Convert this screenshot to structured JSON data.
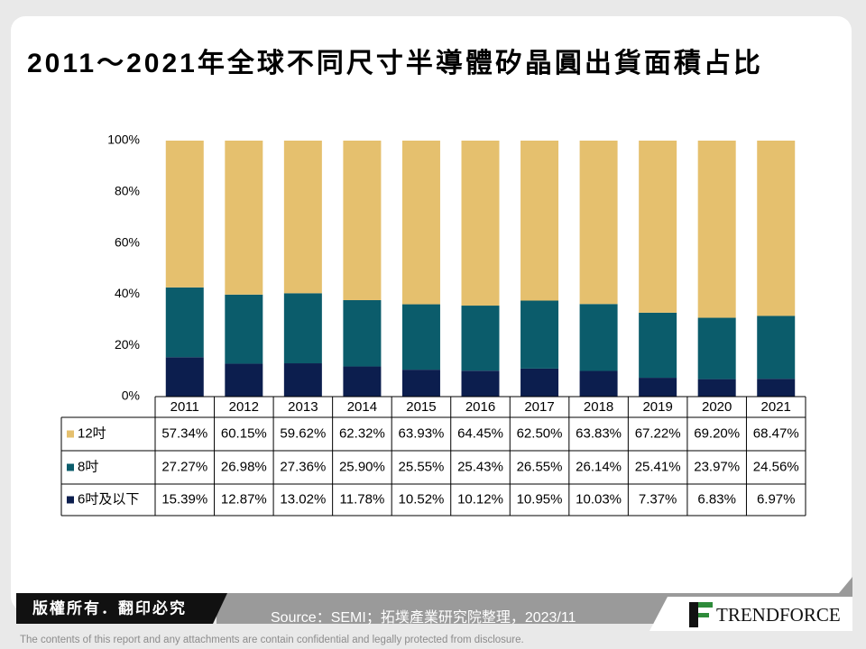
{
  "chart_data": {
    "type": "bar",
    "stacked": true,
    "title": "2011～2021年全球不同尺寸半導體矽晶圓出貨面積占比",
    "categories": [
      "2011",
      "2012",
      "2013",
      "2014",
      "2015",
      "2016",
      "2017",
      "2018",
      "2019",
      "2020",
      "2021"
    ],
    "series": [
      {
        "name": "12吋",
        "color": "#e5c06e",
        "values": [
          57.34,
          60.15,
          59.62,
          62.32,
          63.93,
          64.45,
          62.5,
          63.83,
          67.22,
          69.2,
          68.47
        ],
        "value_labels": [
          "57.34%",
          "60.15%",
          "59.62%",
          "62.32%",
          "63.93%",
          "64.45%",
          "62.50%",
          "63.83%",
          "67.22%",
          "69.20%",
          "68.47%"
        ]
      },
      {
        "name": "8吋",
        "color": "#0b5c6b",
        "values": [
          27.27,
          26.98,
          27.36,
          25.9,
          25.55,
          25.43,
          26.55,
          26.14,
          25.41,
          23.97,
          24.56
        ],
        "value_labels": [
          "27.27%",
          "26.98%",
          "27.36%",
          "25.90%",
          "25.55%",
          "25.43%",
          "26.55%",
          "26.14%",
          "25.41%",
          "23.97%",
          "24.56%"
        ]
      },
      {
        "name": "6吋及以下",
        "color": "#0c1e4e",
        "values": [
          15.39,
          12.87,
          13.02,
          11.78,
          10.52,
          10.12,
          10.95,
          10.03,
          7.37,
          6.83,
          6.97
        ],
        "value_labels": [
          "15.39%",
          "12.87%",
          "13.02%",
          "11.78%",
          "10.52%",
          "10.12%",
          "10.95%",
          "10.03%",
          "7.37%",
          "6.83%",
          "6.97%"
        ]
      }
    ],
    "ylim": [
      0,
      100
    ],
    "yticks": [
      {
        "value": 0,
        "label": "0%"
      },
      {
        "value": 20,
        "label": "20%"
      },
      {
        "value": 40,
        "label": "40%"
      },
      {
        "value": 60,
        "label": "60%"
      },
      {
        "value": 80,
        "label": "80%"
      },
      {
        "value": 100,
        "label": "100%"
      }
    ]
  },
  "footer": {
    "rights": "版權所有．翻印必究",
    "source": "Source：SEMI；拓墣產業研究院整理，2023/11",
    "logo": "TRENDFORCE",
    "disclaimer": "The contents of this report and any attachments are contain confidential and legally protected from disclosure."
  }
}
